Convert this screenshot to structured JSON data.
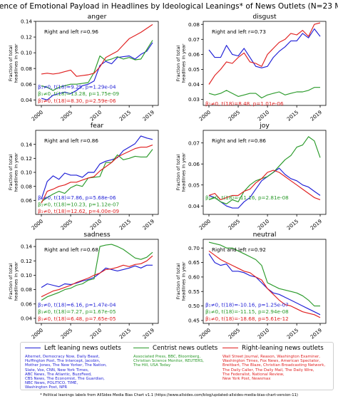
{
  "title": "Prevalence of Emotional Payload in Headlines by Ideological Leanings* of News Outlets (N=23 Million)",
  "ylabel": "Fraction of total headlines in year",
  "legend": [
    {
      "key": "left",
      "label": "Left leaning news outlets",
      "color": "#1f1fd6",
      "outlets": [
        "Alternet, Democracy Now, Daily Beast,",
        "Huffington Post, The Intercept, Jacobin,",
        "Mother Jones, The New Yorker, The Nation,",
        "Slate, Vox, CNN, New York Times,",
        "ABC News, The Atlantic, BuzzFeed,",
        "CBS News, The Economist, The Guardian,",
        "NBC News, POLITICO, TIME,",
        "Washington Post, NPR"
      ]
    },
    {
      "key": "center",
      "label": "Centrist news outlets",
      "color": "#2a9a2a",
      "outlets": [
        "Associated Press, BBC, Bloomberg,",
        "Christian Science Monitor, REUTERS,",
        "The Hill, USA Today"
      ]
    },
    {
      "key": "right",
      "label": "Right-leaning news outlets",
      "color": "#e01f1f",
      "outlets": [
        "Wall Street Journal, Reason, Washington Examiner,",
        "Washington Times, Fox News, American Spectator,",
        "Breitbart, The Blaze, Christian Broadcasting Network,",
        "The Daily Caller, The Daily Mail, The Daily Wire,",
        "The Federalist, National Review,",
        "New York Post, Newsmax"
      ]
    }
  ],
  "footnote": "* Political leanings labels from AllSides Media Bias Chart v1.1 (https://www.allsides.com/blog/updated-allsides-media-bias-chart-version-11)",
  "chart_data": [
    {
      "type": "line",
      "title": "anger",
      "x": [
        2000,
        2001,
        2002,
        2003,
        2004,
        2005,
        2006,
        2007,
        2008,
        2009,
        2010,
        2011,
        2012,
        2013,
        2014,
        2015,
        2016,
        2017,
        2018,
        2019
      ],
      "ylim": [
        0.033,
        0.14
      ],
      "yticks": [
        0.04,
        0.06,
        0.08,
        0.1,
        0.12,
        0.14
      ],
      "xticks": [
        2000,
        2005,
        2010,
        2015,
        2019
      ],
      "annotation": "Right and left r=0.96",
      "stats": [
        "β₁≠0, t(18)=9.25, p=1.29e-04",
        "β₁≠0, t(18)=13.28, p=1.75e-09",
        "β₁≠0, t(18)=8.30, p=2.59e-06"
      ],
      "series": [
        {
          "name": "Left leaning news outlets",
          "values": [
            0.042,
            0.04,
            0.046,
            0.048,
            0.05,
            0.048,
            0.052,
            0.058,
            0.06,
            0.064,
            0.084,
            0.089,
            0.086,
            0.094,
            0.095,
            0.096,
            0.092,
            0.098,
            0.102,
            0.113
          ]
        },
        {
          "name": "Centrist news outlets",
          "values": [
            0.058,
            0.056,
            0.052,
            0.056,
            0.058,
            0.06,
            0.06,
            0.061,
            0.062,
            0.075,
            0.096,
            0.09,
            0.092,
            0.095,
            0.092,
            0.094,
            0.091,
            0.092,
            0.104,
            0.116
          ]
        },
        {
          "name": "Right-leaning news outlets",
          "values": [
            0.073,
            0.074,
            0.073,
            0.074,
            0.076,
            0.078,
            0.07,
            0.071,
            0.072,
            0.074,
            0.082,
            0.094,
            0.098,
            0.102,
            0.11,
            0.118,
            0.122,
            0.126,
            0.131,
            0.136
          ]
        }
      ]
    },
    {
      "type": "line",
      "title": "disgust",
      "x": [
        2000,
        2001,
        2002,
        2003,
        2004,
        2005,
        2006,
        2007,
        2008,
        2009,
        2010,
        2011,
        2012,
        2013,
        2014,
        2015,
        2016,
        2017,
        2018,
        2019
      ],
      "ylim": [
        0.026,
        0.082
      ],
      "yticks": [
        0.03,
        0.04,
        0.05,
        0.06,
        0.07,
        0.08
      ],
      "xticks": [
        2000,
        2005,
        2010,
        2015,
        2019
      ],
      "annotation": "Right and left r=0.73",
      "stats": [
        "β₁≠0, t(18)=8.48, p=1.01e-06"
      ],
      "series": [
        {
          "name": "Left leaning news outlets",
          "values": [
            0.063,
            0.058,
            0.058,
            0.066,
            0.06,
            0.059,
            0.064,
            0.058,
            0.052,
            0.051,
            0.052,
            0.058,
            0.062,
            0.065,
            0.069,
            0.069,
            0.074,
            0.071,
            0.077,
            0.072
          ]
        },
        {
          "name": "Centrist news outlets",
          "values": [
            0.034,
            0.033,
            0.034,
            0.036,
            0.034,
            0.032,
            0.033,
            0.034,
            0.034,
            0.031,
            0.033,
            0.034,
            0.035,
            0.033,
            0.034,
            0.035,
            0.035,
            0.036,
            0.038,
            0.038
          ]
        },
        {
          "name": "Right-leaning news outlets",
          "values": [
            0.04,
            0.046,
            0.05,
            0.055,
            0.054,
            0.058,
            0.061,
            0.055,
            0.054,
            0.052,
            0.06,
            0.064,
            0.068,
            0.07,
            0.074,
            0.073,
            0.076,
            0.072,
            0.08,
            0.081
          ]
        }
      ]
    },
    {
      "type": "line",
      "title": "fear",
      "x": [
        2000,
        2001,
        2002,
        2003,
        2004,
        2005,
        2006,
        2007,
        2008,
        2009,
        2010,
        2011,
        2012,
        2013,
        2014,
        2015,
        2016,
        2017,
        2018,
        2019
      ],
      "ylim": [
        0.04,
        0.16
      ],
      "yticks": [
        0.06,
        0.08,
        0.1,
        0.12,
        0.14
      ],
      "xticks": [
        2000,
        2005,
        2010,
        2015,
        2019
      ],
      "annotation": "Right and left r=0.86",
      "stats": [
        "β₁≠0, t(18)=7.86, p=5.68e-06",
        "β₁≠0, t(18)=10.23, p=1.12e-07",
        "β₁≠0, t(18)=12.62, p=4.00e-09"
      ],
      "series": [
        {
          "name": "Left leaning news outlets",
          "values": [
            0.062,
            0.087,
            0.095,
            0.09,
            0.099,
            0.096,
            0.096,
            0.093,
            0.1,
            0.1,
            0.112,
            0.116,
            0.118,
            0.121,
            0.131,
            0.136,
            0.141,
            0.152,
            0.149,
            0.147
          ]
        },
        {
          "name": "Centrist news outlets",
          "values": [
            0.058,
            0.064,
            0.069,
            0.073,
            0.07,
            0.078,
            0.082,
            0.08,
            0.092,
            0.093,
            0.094,
            0.114,
            0.114,
            0.125,
            0.118,
            0.12,
            0.123,
            0.122,
            0.122,
            0.133
          ]
        },
        {
          "name": "Right-leaning news outlets",
          "values": [
            0.056,
            0.073,
            0.076,
            0.08,
            0.082,
            0.086,
            0.086,
            0.089,
            0.092,
            0.094,
            0.102,
            0.108,
            0.114,
            0.122,
            0.126,
            0.13,
            0.134,
            0.136,
            0.136,
            0.139
          ]
        }
      ]
    },
    {
      "type": "line",
      "title": "joy",
      "x": [
        2000,
        2001,
        2002,
        2003,
        2004,
        2005,
        2006,
        2007,
        2008,
        2009,
        2010,
        2011,
        2012,
        2013,
        2014,
        2015,
        2016,
        2017,
        2018,
        2019
      ],
      "ylim": [
        0.036,
        0.076
      ],
      "yticks": [
        0.04,
        0.05,
        0.06,
        0.07
      ],
      "xticks": [
        2000,
        2005,
        2010,
        2015,
        2019
      ],
      "annotation": "Right and left r=0.86",
      "stats": [
        "β₁≠0, t(18)=-11.16, p=2.81e-08"
      ],
      "series": [
        {
          "name": "Left leaning news outlets",
          "values": [
            0.045,
            0.044,
            0.042,
            0.04,
            0.039,
            0.039,
            0.042,
            0.044,
            0.048,
            0.052,
            0.054,
            0.056,
            0.058,
            0.055,
            0.053,
            0.052,
            0.05,
            0.049,
            0.047,
            0.045
          ]
        },
        {
          "name": "Centrist news outlets",
          "values": [
            0.043,
            0.044,
            0.042,
            0.041,
            0.043,
            0.042,
            0.047,
            0.05,
            0.052,
            0.053,
            0.054,
            0.056,
            0.059,
            0.062,
            0.064,
            0.068,
            0.069,
            0.073,
            0.071,
            0.063
          ]
        },
        {
          "name": "Right-leaning news outlets",
          "values": [
            0.045,
            0.046,
            0.043,
            0.044,
            0.045,
            0.045,
            0.047,
            0.048,
            0.051,
            0.053,
            0.056,
            0.057,
            0.056,
            0.054,
            0.052,
            0.05,
            0.048,
            0.046,
            0.044,
            0.043
          ]
        }
      ]
    },
    {
      "type": "line",
      "title": "sadness",
      "x": [
        2000,
        2001,
        2002,
        2003,
        2004,
        2005,
        2006,
        2007,
        2008,
        2009,
        2010,
        2011,
        2012,
        2013,
        2014,
        2015,
        2016,
        2017,
        2018,
        2019
      ],
      "ylim": [
        0.033,
        0.15
      ],
      "yticks": [
        0.04,
        0.06,
        0.08,
        0.1,
        0.12,
        0.14
      ],
      "xticks": [
        2000,
        2005,
        2010,
        2015,
        2019
      ],
      "annotation": "Right and left r=0.68",
      "stats": [
        "β₁≠0, t(18)=6.16, p=1.47e-04",
        "β₁≠0, t(18)=7.27, p=1.67e-05",
        "β₁≠0, t(18)=6.48, p=7.65e-05"
      ],
      "series": [
        {
          "name": "Left leaning news outlets",
          "values": [
            0.083,
            0.088,
            0.086,
            0.084,
            0.088,
            0.087,
            0.089,
            0.092,
            0.094,
            0.097,
            0.103,
            0.11,
            0.108,
            0.106,
            0.108,
            0.11,
            0.113,
            0.11,
            0.114,
            0.114
          ]
        },
        {
          "name": "Centrist news outlets",
          "values": [
            0.065,
            0.07,
            0.073,
            0.076,
            0.08,
            0.082,
            0.086,
            0.088,
            0.093,
            0.095,
            0.14,
            0.142,
            0.143,
            0.14,
            0.136,
            0.13,
            0.124,
            0.122,
            0.125,
            0.132
          ]
        },
        {
          "name": "Right-leaning news outlets",
          "values": [
            0.07,
            0.074,
            0.078,
            0.08,
            0.083,
            0.086,
            0.09,
            0.093,
            0.096,
            0.1,
            0.103,
            0.108,
            0.109,
            0.111,
            0.114,
            0.112,
            0.115,
            0.116,
            0.12,
            0.127
          ]
        }
      ]
    },
    {
      "type": "line",
      "title": "neutral",
      "x": [
        2000,
        2001,
        2002,
        2003,
        2004,
        2005,
        2006,
        2007,
        2008,
        2009,
        2010,
        2011,
        2012,
        2013,
        2014,
        2015,
        2016,
        2017,
        2018,
        2019
      ],
      "ylim": [
        0.44,
        0.73
      ],
      "yticks": [
        0.45,
        0.5,
        0.55,
        0.6,
        0.65,
        0.7
      ],
      "xticks": [
        2000,
        2005,
        2010,
        2015,
        2019
      ],
      "annotation": "Right and left r=0.92",
      "stats": [
        "β₁≠0, t(18)=-10.16, p=1.25e-07",
        "β₁≠0, t(18)=-11.15, p=2.94e-08",
        "β₁≠0, t(18)=-18.68, p=5.61e-12"
      ],
      "series": [
        {
          "name": "Left leaning news outlets",
          "values": [
            0.68,
            0.65,
            0.64,
            0.645,
            0.62,
            0.62,
            0.615,
            0.605,
            0.6,
            0.58,
            0.56,
            0.545,
            0.54,
            0.53,
            0.52,
            0.51,
            0.5,
            0.49,
            0.48,
            0.47
          ]
        },
        {
          "name": "Centrist news outlets",
          "values": [
            0.72,
            0.715,
            0.71,
            0.7,
            0.7,
            0.69,
            0.68,
            0.67,
            0.66,
            0.64,
            0.58,
            0.57,
            0.56,
            0.555,
            0.55,
            0.545,
            0.535,
            0.52,
            0.5,
            0.5
          ]
        },
        {
          "name": "Right-leaning news outlets",
          "values": [
            0.69,
            0.675,
            0.66,
            0.65,
            0.64,
            0.63,
            0.62,
            0.615,
            0.6,
            0.59,
            0.56,
            0.54,
            0.52,
            0.505,
            0.5,
            0.49,
            0.48,
            0.475,
            0.47,
            0.46
          ]
        }
      ]
    }
  ]
}
